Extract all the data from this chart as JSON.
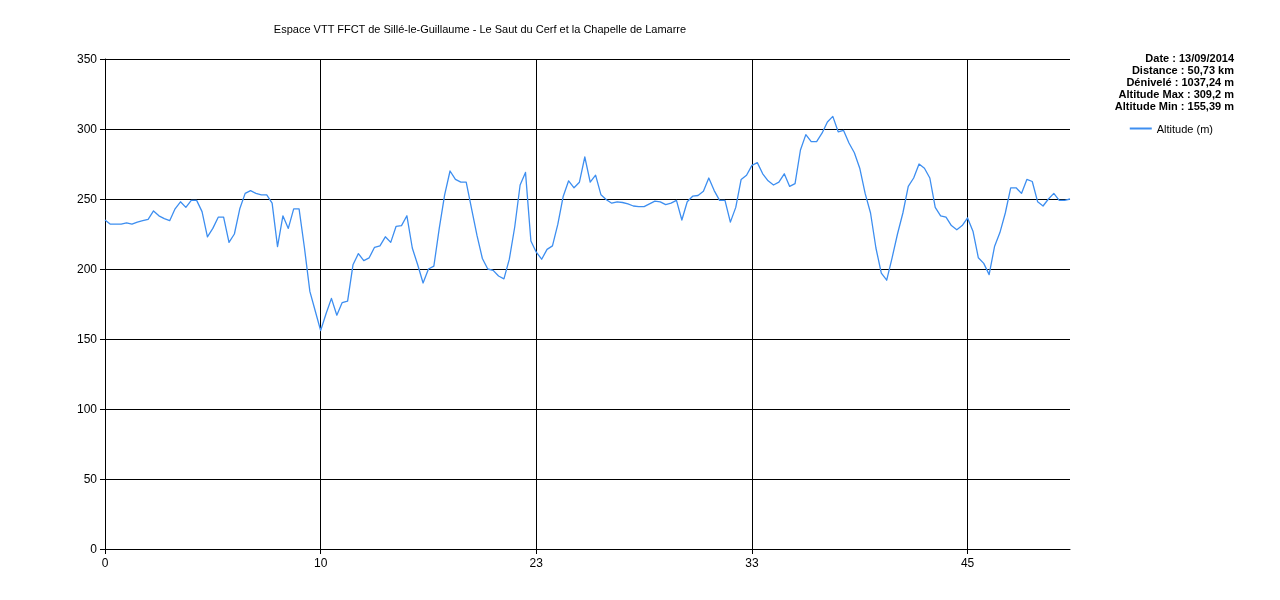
{
  "chart_data": {
    "type": "line",
    "title": "Espace VTT FFCT de Sillé-le-Guillaume - Le Saut du Cerf et la Chapelle de Lamarre",
    "annotations": [
      "Date : 13/09/2014",
      "Distance : 50,73 km",
      "Dénivelé : 1037,24 m",
      "Altitude Max : 309,2 m",
      "Altitude Min : 155,39 m"
    ],
    "categories": [
      "0",
      null,
      null,
      null,
      null,
      null,
      null,
      null,
      null,
      null,
      null,
      null,
      null,
      null,
      null,
      null,
      null,
      null,
      null,
      null,
      null,
      null,
      null,
      null,
      null,
      null,
      null,
      null,
      null,
      null,
      null,
      null,
      null,
      null,
      null,
      null,
      null,
      null,
      null,
      null,
      "10",
      null,
      null,
      null,
      null,
      null,
      null,
      null,
      null,
      null,
      null,
      null,
      null,
      null,
      null,
      null,
      null,
      null,
      null,
      null,
      null,
      null,
      null,
      null,
      null,
      null,
      null,
      null,
      null,
      null,
      null,
      null,
      null,
      null,
      null,
      null,
      null,
      null,
      null,
      null,
      "23",
      null,
      null,
      null,
      null,
      null,
      null,
      null,
      null,
      null,
      null,
      null,
      null,
      null,
      null,
      null,
      null,
      null,
      null,
      null,
      null,
      null,
      null,
      null,
      null,
      null,
      null,
      null,
      null,
      null,
      null,
      null,
      null,
      null,
      null,
      null,
      null,
      null,
      null,
      null,
      "33",
      null,
      null,
      null,
      null,
      null,
      null,
      null,
      null,
      null,
      null,
      null,
      null,
      null,
      null,
      null,
      null,
      null,
      null,
      null,
      null,
      null,
      null,
      null,
      null,
      null,
      null,
      null,
      null,
      null,
      null,
      null,
      null,
      null,
      null,
      null,
      null,
      null,
      null,
      null,
      "45",
      null,
      null,
      null,
      null,
      null,
      null,
      null,
      null,
      null,
      null,
      null,
      null,
      null,
      null,
      null,
      null,
      null,
      null,
      null
    ],
    "series": [
      {
        "name": "Altitude (m)",
        "color": "#3d8ef0",
        "values": [
          235,
          232,
          232,
          232,
          233,
          232,
          233.5,
          234.5,
          235.5,
          241.5,
          238,
          236,
          234.5,
          243,
          248,
          244,
          249,
          249,
          241,
          223,
          229,
          237,
          237,
          219,
          225,
          243,
          254,
          256,
          254,
          253,
          253,
          247,
          216,
          238,
          229,
          243,
          243,
          215,
          184,
          170,
          156,
          168,
          179,
          167,
          176,
          177,
          203,
          211,
          206,
          208,
          215.5,
          216.5,
          223,
          219,
          230.5,
          231,
          238,
          215,
          203,
          190,
          200,
          202,
          229,
          253,
          270,
          264,
          262,
          262,
          243,
          224,
          207.5,
          200,
          199,
          195,
          193,
          207,
          230,
          260,
          269,
          220,
          212,
          207,
          214,
          216.5,
          232,
          252,
          263,
          258,
          262,
          280,
          262,
          267,
          253,
          249.5,
          247,
          248,
          247.5,
          246.5,
          245,
          244.5,
          244.5,
          246.5,
          248.5,
          248,
          246,
          247,
          249,
          235,
          248,
          252,
          252.5,
          255.5,
          265,
          256,
          249,
          249,
          233.5,
          244,
          264,
          267,
          274,
          276,
          268,
          263,
          260,
          262,
          268,
          259,
          261,
          285,
          296,
          291,
          291,
          297,
          305,
          309,
          298,
          299,
          290,
          283,
          272,
          254,
          240,
          215,
          197,
          192,
          208,
          225,
          240,
          259,
          265,
          275,
          272,
          265,
          244,
          238,
          237,
          231,
          228,
          231,
          236.5,
          227,
          208,
          204,
          196,
          216,
          226,
          240,
          258,
          258,
          254,
          264,
          262.5,
          248,
          245,
          250,
          254,
          249,
          249,
          250
        ]
      }
    ],
    "ylim": [
      0,
      350
    ],
    "yticks": [
      0,
      50,
      100,
      150,
      200,
      250,
      300,
      350
    ],
    "grid": true,
    "legend": "top right"
  }
}
